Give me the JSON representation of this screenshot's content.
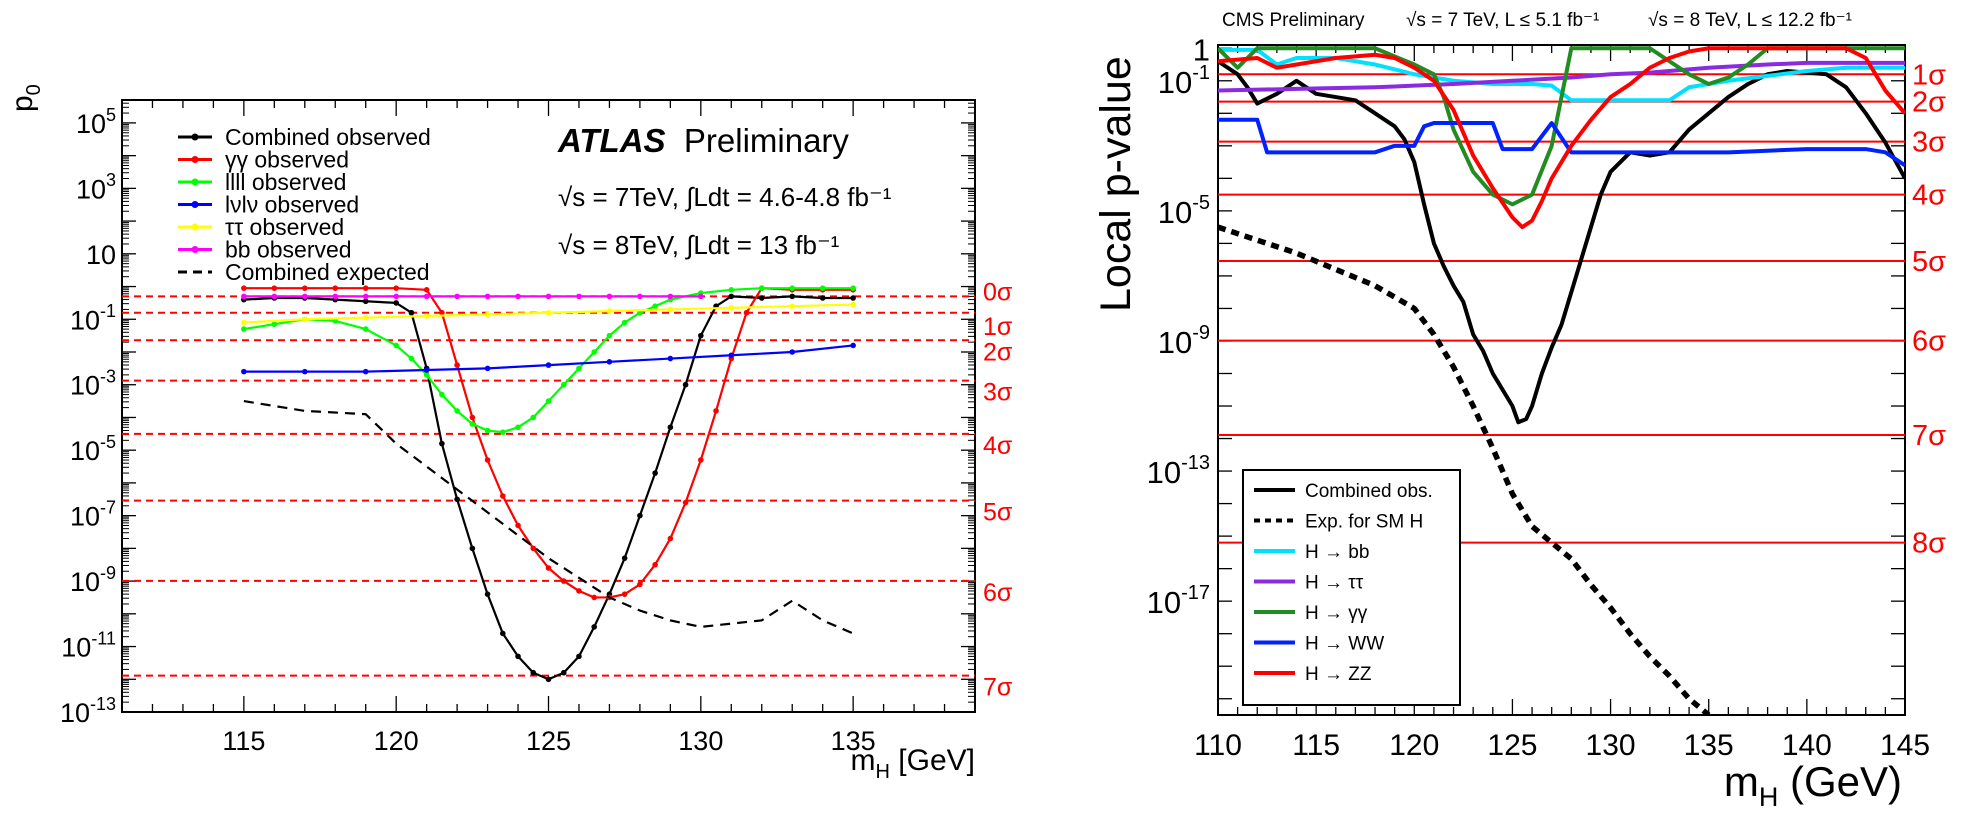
{
  "chart_data": [
    {
      "type": "line",
      "experiment": "ATLAS",
      "title_bold": "ATLAS",
      "title_rest": "Preliminary",
      "energy_lines": [
        "√s = 7TeV, ∫Ldt = 4.6-4.8 fb⁻¹",
        "√s = 8TeV, ∫Ldt = 13 fb⁻¹"
      ],
      "ylabel": "p",
      "ylabel_sub": "0",
      "xlabel": "m",
      "xlabel_sub": "H",
      "xlabel_unit": " [GeV]",
      "xlim": [
        111,
        139
      ],
      "x_ticks": [
        "115",
        "120",
        "125",
        "130",
        "135"
      ],
      "y_log": true,
      "ylim_log10": [
        -13,
        5.7
      ],
      "y_ticks": [
        {
          "base": "10",
          "exp": "5"
        },
        {
          "base": "10",
          "exp": "3"
        },
        {
          "base": "10",
          "exp": ""
        },
        {
          "base": "10",
          "exp": "-1"
        },
        {
          "base": "10",
          "exp": "-3"
        },
        {
          "base": "10",
          "exp": "-5"
        },
        {
          "base": "10",
          "exp": "-7"
        },
        {
          "base": "10",
          "exp": "-9"
        },
        {
          "base": "10",
          "exp": "-11"
        },
        {
          "base": "10",
          "exp": "-13"
        }
      ],
      "sigma_lines": [
        {
          "label": "0σ",
          "log10p": -0.301
        },
        {
          "label": "1σ",
          "log10p": -0.801
        },
        {
          "label": "2σ",
          "log10p": -1.641
        },
        {
          "label": "3σ",
          "log10p": -2.873
        },
        {
          "label": "4σ",
          "log10p": -4.501
        },
        {
          "label": "5σ",
          "log10p": -6.543
        },
        {
          "label": "6σ",
          "log10p": -8.993
        },
        {
          "label": "7σ",
          "log10p": -11.89
        }
      ],
      "legend_position": "top-left",
      "series": [
        {
          "name": "Combined observed",
          "color": "#000000",
          "style": "solid-markers",
          "x": [
            115,
            116,
            117,
            118,
            119,
            120,
            120.5,
            121,
            121.5,
            122,
            122.5,
            123,
            123.5,
            124,
            124.5,
            125,
            125.5,
            126,
            126.5,
            127,
            127.5,
            128,
            128.5,
            129,
            129.5,
            130,
            130.5,
            131,
            132,
            133,
            134,
            135
          ],
          "log10p": [
            -0.4,
            -0.35,
            -0.35,
            -0.4,
            -0.45,
            -0.5,
            -0.8,
            -2.5,
            -4.8,
            -6.5,
            -8,
            -9.4,
            -10.6,
            -11.3,
            -11.8,
            -12,
            -11.8,
            -11.3,
            -10.4,
            -9.4,
            -8.3,
            -7,
            -5.7,
            -4.3,
            -3,
            -1.5,
            -0.6,
            -0.3,
            -0.35,
            -0.3,
            -0.35,
            -0.35
          ]
        },
        {
          "name": "γγ observed",
          "color": "#ff0000",
          "style": "solid-markers",
          "x": [
            115,
            116,
            117,
            118,
            119,
            120,
            121,
            121.5,
            122,
            122.5,
            123,
            123.5,
            124,
            124.5,
            125,
            125.5,
            126,
            126.5,
            127,
            127.5,
            128,
            128.5,
            129,
            129.5,
            130,
            130.5,
            131,
            131.5,
            132,
            133,
            134,
            135
          ],
          "log10p": [
            -0.05,
            -0.05,
            -0.05,
            -0.05,
            -0.05,
            -0.05,
            -0.1,
            -0.8,
            -2.4,
            -4,
            -5.3,
            -6.4,
            -7.3,
            -8,
            -8.6,
            -9,
            -9.3,
            -9.5,
            -9.5,
            -9.4,
            -9.1,
            -8.5,
            -7.7,
            -6.6,
            -5.3,
            -3.8,
            -2.2,
            -0.8,
            -0.05,
            -0.1,
            -0.1,
            -0.1
          ]
        },
        {
          "name": "llll observed",
          "color": "#00ff00",
          "style": "solid-markers",
          "x": [
            115,
            116,
            117,
            118,
            119,
            120,
            120.5,
            121,
            121.5,
            122,
            122.5,
            123,
            123.5,
            124,
            124.5,
            125,
            125.5,
            126,
            126.5,
            127,
            127.5,
            128,
            128.5,
            129,
            130,
            131,
            132,
            133,
            134,
            135
          ],
          "log10p": [
            -1.3,
            -1.15,
            -1.0,
            -1.05,
            -1.3,
            -1.8,
            -2.2,
            -2.7,
            -3.3,
            -3.8,
            -4.2,
            -4.4,
            -4.45,
            -4.3,
            -4.0,
            -3.5,
            -3.0,
            -2.5,
            -2.0,
            -1.5,
            -1.1,
            -0.8,
            -0.6,
            -0.4,
            -0.2,
            -0.1,
            -0.05,
            -0.05,
            -0.05,
            -0.05
          ]
        },
        {
          "name": "lνlν observed",
          "color": "#0000ff",
          "style": "solid-markers",
          "x": [
            115,
            117,
            119,
            121,
            123,
            125,
            127,
            129,
            131,
            133,
            135
          ],
          "log10p": [
            -2.6,
            -2.6,
            -2.6,
            -2.55,
            -2.5,
            -2.4,
            -2.3,
            -2.2,
            -2.1,
            -2.0,
            -1.8
          ]
        },
        {
          "name": "ττ observed",
          "color": "#ffff00",
          "style": "solid-markers",
          "x": [
            115,
            117,
            119,
            121,
            123,
            125,
            127,
            129,
            131,
            133,
            135
          ],
          "log10p": [
            -1.1,
            -1.0,
            -0.95,
            -0.9,
            -0.85,
            -0.8,
            -0.75,
            -0.7,
            -0.65,
            -0.6,
            -0.55
          ]
        },
        {
          "name": "bb observed",
          "color": "#ff00ff",
          "style": "solid-markers",
          "x": [
            115,
            116,
            117,
            118,
            119,
            120,
            121,
            122,
            123,
            124,
            125,
            126,
            127,
            128,
            129,
            130
          ],
          "log10p": [
            -0.3,
            -0.3,
            -0.3,
            -0.3,
            -0.3,
            -0.3,
            -0.3,
            -0.3,
            -0.3,
            -0.3,
            -0.3,
            -0.3,
            -0.3,
            -0.3,
            -0.3,
            -0.3
          ]
        },
        {
          "name": "Combined expected",
          "color": "#000000",
          "style": "dashed",
          "x": [
            115,
            117,
            119,
            120,
            121,
            122,
            123,
            124,
            125,
            126,
            127,
            128,
            129,
            130,
            131,
            132,
            133,
            134,
            135
          ],
          "log10p": [
            -3.5,
            -3.8,
            -3.9,
            -4.8,
            -5.5,
            -6.2,
            -6.9,
            -7.6,
            -8.3,
            -8.9,
            -9.5,
            -9.9,
            -10.2,
            -10.4,
            -10.3,
            -10.2,
            -9.6,
            -10.2,
            -10.6
          ]
        }
      ]
    },
    {
      "type": "line",
      "experiment": "CMS",
      "title": "CMS Preliminary",
      "energy_7": "√s = 7 TeV, L ≤ 5.1 fb⁻¹",
      "energy_8": "√s = 8 TeV, L ≤ 12.2 fb⁻¹",
      "ylabel": "Local p-value",
      "xlabel": "m",
      "xlabel_sub": "H",
      "xlabel_unit": " (GeV)",
      "xlim": [
        110,
        145
      ],
      "x_ticks": [
        "110",
        "115",
        "120",
        "125",
        "130",
        "135",
        "140",
        "145"
      ],
      "y_log": true,
      "ylim_log10": [
        -20.5,
        0.1
      ],
      "y_ticks": [
        {
          "base": "1",
          "exp": ""
        },
        {
          "base": "10",
          "exp": "-1"
        },
        {
          "base": "10",
          "exp": "-5"
        },
        {
          "base": "10",
          "exp": "-9"
        },
        {
          "base": "10",
          "exp": "-13"
        },
        {
          "base": "10",
          "exp": "-17"
        }
      ],
      "sigma_lines": [
        {
          "label": "1σ",
          "log10p": -0.8
        },
        {
          "label": "2σ",
          "log10p": -1.64
        },
        {
          "label": "3σ",
          "log10p": -2.87
        },
        {
          "label": "4σ",
          "log10p": -4.5
        },
        {
          "label": "5σ",
          "log10p": -6.54
        },
        {
          "label": "6σ",
          "log10p": -8.99
        },
        {
          "label": "7σ",
          "log10p": -11.89
        },
        {
          "label": "8σ",
          "log10p": -15.2
        }
      ],
      "legend_position": "bottom-left",
      "series": [
        {
          "name": "Combined  obs.",
          "color": "#000000",
          "style": "solid",
          "x": [
            110,
            111,
            111.5,
            112,
            113,
            114,
            115,
            116,
            117,
            118,
            119,
            119.5,
            120,
            120.5,
            121,
            121.5,
            122,
            122.5,
            123,
            123.5,
            124,
            124.5,
            125,
            125.3,
            125.7,
            126,
            126.5,
            127,
            127.5,
            128,
            128.5,
            129,
            129.5,
            130,
            131,
            132,
            133,
            134,
            135,
            136,
            137,
            138,
            139,
            140,
            141,
            142,
            143,
            144,
            145
          ],
          "log10p": [
            -0.4,
            -0.8,
            -1.2,
            -1.7,
            -1.4,
            -1.0,
            -1.4,
            -1.5,
            -1.6,
            -2.0,
            -2.4,
            -2.8,
            -3.5,
            -4.8,
            -6.0,
            -6.7,
            -7.3,
            -7.8,
            -8.8,
            -9.3,
            -10.0,
            -10.5,
            -11.0,
            -11.5,
            -11.4,
            -11.0,
            -10.0,
            -9.2,
            -8.5,
            -7.5,
            -6.5,
            -5.5,
            -4.5,
            -3.8,
            -3.2,
            -3.3,
            -3.2,
            -2.5,
            -2.0,
            -1.5,
            -1.1,
            -0.8,
            -0.7,
            -0.75,
            -0.8,
            -1.2,
            -2.0,
            -2.9,
            -4.0
          ]
        },
        {
          "name": "Exp. for SM H",
          "color": "#000000",
          "style": "dotted",
          "x": [
            110,
            112,
            114,
            116,
            118,
            120,
            121,
            122,
            123,
            124,
            125,
            126,
            127,
            128,
            129,
            130,
            131,
            132,
            133,
            134,
            135
          ],
          "log10p": [
            -5.5,
            -5.9,
            -6.3,
            -6.8,
            -7.3,
            -8.0,
            -8.8,
            -9.8,
            -11.0,
            -12.3,
            -13.7,
            -14.7,
            -15.2,
            -15.7,
            -16.5,
            -17.2,
            -18.0,
            -18.7,
            -19.3,
            -20.0,
            -20.5
          ]
        },
        {
          "name": "H → bb",
          "color": "#00e0ff",
          "style": "solid",
          "x": [
            110,
            112,
            113,
            114,
            116,
            118,
            120,
            122,
            124,
            126,
            127,
            128,
            130,
            132,
            133,
            133.5,
            134,
            135,
            136,
            138,
            140,
            142,
            145
          ],
          "log10p": [
            -0.05,
            -0.05,
            -0.5,
            -0.3,
            -0.3,
            -0.5,
            -0.8,
            -1.0,
            -1.1,
            -1.1,
            -1.15,
            -1.6,
            -1.6,
            -1.6,
            -1.6,
            -1.4,
            -1.2,
            -1.1,
            -1.0,
            -0.85,
            -0.7,
            -0.6,
            -0.6
          ]
        },
        {
          "name": "H → ττ",
          "color": "#8a2be2",
          "style": "solid",
          "x": [
            110,
            114,
            118,
            120,
            122,
            125,
            128,
            130,
            132,
            135,
            138,
            140,
            142,
            145
          ],
          "log10p": [
            -1.3,
            -1.25,
            -1.2,
            -1.15,
            -1.1,
            -1.0,
            -0.9,
            -0.8,
            -0.75,
            -0.6,
            -0.5,
            -0.45,
            -0.45,
            -0.45
          ]
        },
        {
          "name": "H → γγ",
          "color": "#228b22",
          "style": "solid",
          "x": [
            110,
            111,
            112,
            118,
            120,
            121,
            121.5,
            122,
            123,
            124,
            125,
            126,
            127,
            127.5,
            128,
            130,
            132,
            133,
            134,
            135,
            136,
            137,
            138,
            139,
            140,
            141,
            142,
            145
          ],
          "log10p": [
            0,
            -0.6,
            0,
            0,
            -0.5,
            -0.8,
            -1.5,
            -2.5,
            -3.8,
            -4.5,
            -4.8,
            -4.5,
            -3.0,
            -1.5,
            0,
            0,
            0,
            -0.4,
            -0.8,
            -1.1,
            -0.9,
            -0.5,
            0,
            0,
            0,
            0,
            0,
            0
          ]
        },
        {
          "name": "H → WW",
          "color": "#0022ff",
          "style": "solid",
          "x": [
            110,
            112,
            112.5,
            118,
            119,
            120,
            120.5,
            121,
            124,
            124.5,
            126,
            127,
            128,
            130,
            132,
            134,
            136,
            138,
            140,
            142,
            143,
            144,
            145
          ],
          "log10p": [
            -2.2,
            -2.2,
            -3.2,
            -3.2,
            -3.0,
            -3.0,
            -2.4,
            -2.3,
            -2.3,
            -3.1,
            -3.1,
            -2.3,
            -3.2,
            -3.2,
            -3.2,
            -3.2,
            -3.2,
            -3.15,
            -3.1,
            -3.1,
            -3.1,
            -3.2,
            -3.6
          ]
        },
        {
          "name": "H → ZZ",
          "color": "#ff0000",
          "style": "solid",
          "x": [
            110,
            112,
            113,
            114,
            116,
            118,
            119,
            120,
            121,
            122,
            123,
            124,
            125,
            125.5,
            126,
            126.5,
            127,
            128,
            129,
            130,
            131,
            132,
            133,
            134,
            135,
            136,
            137,
            138,
            140,
            142,
            143,
            144,
            145
          ],
          "log10p": [
            -0.4,
            -0.3,
            -0.6,
            -0.5,
            -0.3,
            -0.2,
            -0.3,
            -0.6,
            -1.0,
            -1.9,
            -3.3,
            -4.3,
            -5.2,
            -5.5,
            -5.3,
            -4.7,
            -4.0,
            -3.0,
            -2.2,
            -1.5,
            -1.1,
            -0.6,
            -0.3,
            -0.1,
            0,
            0,
            0,
            0,
            0,
            0,
            -0.3,
            -1.3,
            -2.0
          ]
        }
      ]
    }
  ]
}
